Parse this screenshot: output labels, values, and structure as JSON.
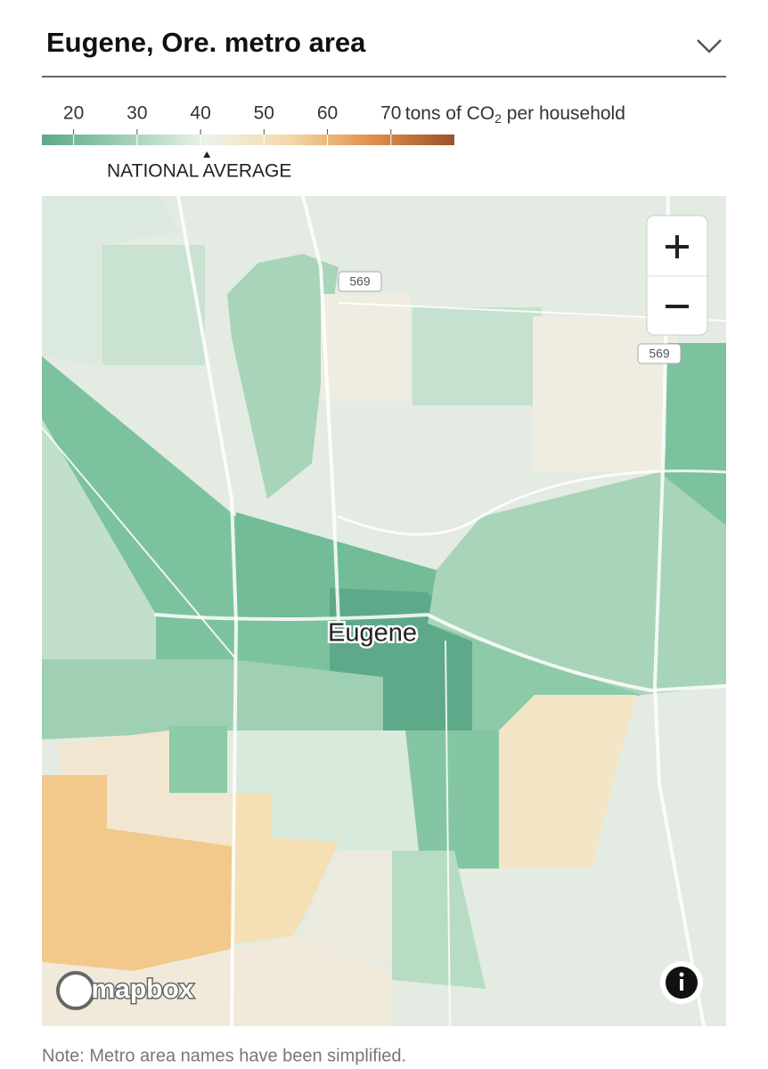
{
  "header": {
    "title": "Eugene, Ore. metro area"
  },
  "legend": {
    "ticks": [
      20,
      30,
      40,
      50,
      60,
      70
    ],
    "range": [
      15,
      80
    ],
    "unit_before_sub": "tons of CO",
    "unit_sub": "2",
    "unit_after_sub": " per household",
    "colors": [
      "#5ea989",
      "#9fd0b3",
      "#eef2ea",
      "#f3d9a8",
      "#e38f4b",
      "#9a5329"
    ],
    "national_average": {
      "label": "NATIONAL AVERAGE",
      "value": 41
    }
  },
  "map": {
    "city_label": "Eugene",
    "road_shields": [
      "569",
      "569"
    ],
    "attribution": "mapbox"
  },
  "note": "Note: Metro area names have been simplified."
}
